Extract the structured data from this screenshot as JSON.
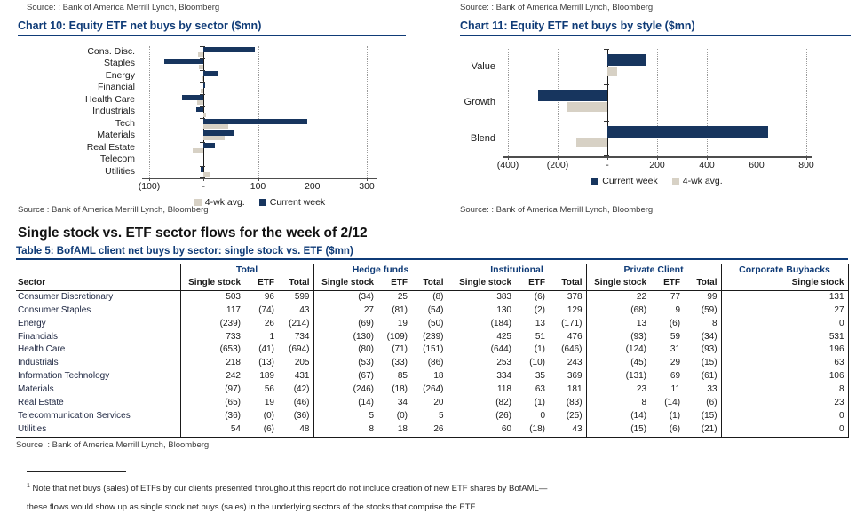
{
  "page": {
    "top_source_left": "Source: : Bank of America Merrill Lynch, Bloomberg",
    "top_source_right": "Source: : Bank of America Merrill Lynch, Bloomberg",
    "section_title": "Single stock vs. ETF sector flows for the week of 2/12",
    "footnote": {
      "sup": "1",
      "line1": "Note that net buys (sales) of ETFs by our clients presented throughout this report do not include creation of new ETF shares by BofAML—",
      "line2": "these flows would show up as single stock net buys (sales) in the underlying sectors of the stocks that comprise the ETF."
    }
  },
  "colors": {
    "navy_bar": "#17355e",
    "tan_bar": "#d7d1c5",
    "title_navy": "#0f3b77",
    "grid_gray": "#9a9a9a"
  },
  "chart_data": [
    {
      "id": "chart10",
      "type": "bar",
      "orientation": "horizontal",
      "title": "Chart 10: Equity ETF net buys by sector ($mn)",
      "categories": [
        "Cons. Disc.",
        "Staples",
        "Energy",
        "Financial",
        "Health Care",
        "Industrials",
        "Tech",
        "Materials",
        "Real Estate",
        "Telecom",
        "Utilities"
      ],
      "series": [
        {
          "name": "Current week",
          "color": "#17355e",
          "values": [
            95,
            -72,
            25,
            3,
            -39,
            -13,
            190,
            55,
            20,
            0,
            -5
          ]
        },
        {
          "name": "4-wk avg.",
          "color": "#d7d1c5",
          "values": [
            -11,
            -9,
            -2,
            -5,
            -12,
            5,
            46,
            39,
            -20,
            0,
            12
          ]
        }
      ],
      "xlim": [
        -100,
        300
      ],
      "xticks": [
        -100,
        0,
        100,
        200,
        300
      ],
      "xtick_labels": [
        "(100)",
        "-",
        "100",
        "200",
        "300"
      ],
      "legend_order": [
        1,
        0
      ],
      "grid": "dotted-vertical",
      "legend_position": "bottom",
      "source": "Source : Bank of America Merrill Lynch, Bloomberg"
    },
    {
      "id": "chart11",
      "type": "bar",
      "orientation": "horizontal",
      "title": "Chart 11: Equity ETF net buys by style ($mn)",
      "categories": [
        "Value",
        "Growth",
        "Blend"
      ],
      "series": [
        {
          "name": "Current week",
          "color": "#17355e",
          "values": [
            155,
            -280,
            645
          ]
        },
        {
          "name": "4-wk avg.",
          "color": "#d7d1c5",
          "values": [
            38,
            -160,
            -125
          ]
        }
      ],
      "xlim": [
        -400,
        800
      ],
      "xticks": [
        -400,
        -200,
        0,
        200,
        400,
        600,
        800
      ],
      "xtick_labels": [
        "(400)",
        "(200)",
        "-",
        "200",
        "400",
        "600",
        "800"
      ],
      "legend_order": [
        0,
        1
      ],
      "grid": "dotted-vertical",
      "legend_position": "bottom",
      "source": "Source: : Bank of America Merrill Lynch, Bloomberg"
    }
  ],
  "table": {
    "title": "Table 5: BofAML client net buys by sector: single stock vs. ETF ($mn)",
    "sector_header": "Sector",
    "groups": [
      {
        "label": "Total",
        "columns": [
          "Single stock",
          "ETF",
          "Total"
        ]
      },
      {
        "label": "Hedge funds",
        "columns": [
          "Single stock",
          "ETF",
          "Total"
        ]
      },
      {
        "label": "Institutional",
        "columns": [
          "Single stock",
          "ETF",
          "Total"
        ]
      },
      {
        "label": "Private Client",
        "columns": [
          "Single stock",
          "ETF",
          "Total"
        ]
      },
      {
        "label": "Corporate Buybacks",
        "columns": [
          "Single stock"
        ]
      }
    ],
    "rows": [
      {
        "sector": "Consumer Discretionary",
        "values": [
          "503",
          "96",
          "599",
          "(34)",
          "25",
          "(8)",
          "383",
          "(6)",
          "378",
          "22",
          "77",
          "99",
          "131"
        ]
      },
      {
        "sector": "Consumer Staples",
        "values": [
          "117",
          "(74)",
          "43",
          "27",
          "(81)",
          "(54)",
          "130",
          "(2)",
          "129",
          "(68)",
          "9",
          "(59)",
          "27"
        ]
      },
      {
        "sector": "Energy",
        "values": [
          "(239)",
          "26",
          "(214)",
          "(69)",
          "19",
          "(50)",
          "(184)",
          "13",
          "(171)",
          "13",
          "(6)",
          "8",
          "0"
        ]
      },
      {
        "sector": "Financials",
        "values": [
          "733",
          "1",
          "734",
          "(130)",
          "(109)",
          "(239)",
          "425",
          "51",
          "476",
          "(93)",
          "59",
          "(34)",
          "531"
        ]
      },
      {
        "sector": "Health Care",
        "values": [
          "(653)",
          "(41)",
          "(694)",
          "(80)",
          "(71)",
          "(151)",
          "(644)",
          "(1)",
          "(646)",
          "(124)",
          "31",
          "(93)",
          "196"
        ]
      },
      {
        "sector": "Industrials",
        "values": [
          "218",
          "(13)",
          "205",
          "(53)",
          "(33)",
          "(86)",
          "253",
          "(10)",
          "243",
          "(45)",
          "29",
          "(15)",
          "63"
        ]
      },
      {
        "sector": "Information Technology",
        "values": [
          "242",
          "189",
          "431",
          "(67)",
          "85",
          "18",
          "334",
          "35",
          "369",
          "(131)",
          "69",
          "(61)",
          "106"
        ]
      },
      {
        "sector": "Materials",
        "values": [
          "(97)",
          "56",
          "(42)",
          "(246)",
          "(18)",
          "(264)",
          "118",
          "63",
          "181",
          "23",
          "11",
          "33",
          "8"
        ]
      },
      {
        "sector": "Real Estate",
        "values": [
          "(65)",
          "19",
          "(46)",
          "(14)",
          "34",
          "20",
          "(82)",
          "(1)",
          "(83)",
          "8",
          "(14)",
          "(6)",
          "23"
        ]
      },
      {
        "sector": "Telecommunication Services",
        "values": [
          "(36)",
          "(0)",
          "(36)",
          "5",
          "(0)",
          "5",
          "(26)",
          "0",
          "(25)",
          "(14)",
          "(1)",
          "(15)",
          "0"
        ]
      },
      {
        "sector": "Utilities",
        "values": [
          "54",
          "(6)",
          "48",
          "8",
          "18",
          "26",
          "60",
          "(18)",
          "43",
          "(15)",
          "(6)",
          "(21)",
          "0"
        ]
      }
    ],
    "source": "Source: : Bank of America Merrill Lynch, Bloomberg"
  }
}
